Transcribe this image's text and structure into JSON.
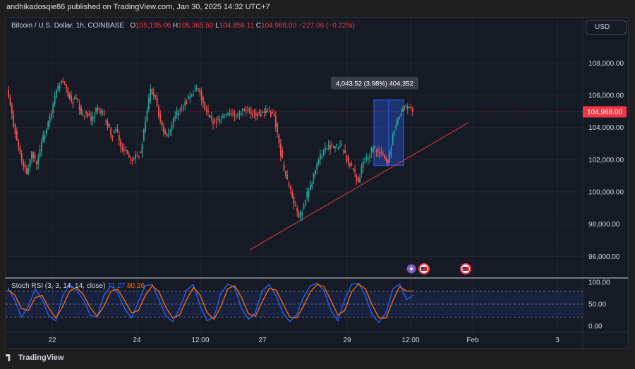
{
  "header": {
    "publisher_text": "andhikadosqie86 published on TradingView.com, Jan 30, 2025 14:32 UTC+7"
  },
  "legend": {
    "symbol": "Bitcoin / U.S. Dollar, 1h, COINBASE",
    "open_label": "O",
    "open_value": "105,195.06",
    "high_label": "H",
    "high_value": "105,365.50",
    "low_label": "L",
    "low_value": "104,858.11",
    "close_label": "C",
    "close_value": "104,968.00",
    "change_value": "−227.06 (−0.22%)"
  },
  "currency_button": "USD",
  "rsi_legend": {
    "name": "Stoch RSI (3, 3, 14, 14, close)",
    "k_value": "71.27",
    "d_value": "80.26"
  },
  "footer": {
    "brand": "TradingView"
  },
  "colors": {
    "up": "#26a69a",
    "down": "#ef5350",
    "price_tag": "#f23645",
    "trendline": "#c2343d",
    "k_line": "#2962ff",
    "d_line": "#ff6d00",
    "measure_box": "#2962ff"
  },
  "icons": [
    "lightning-event-icon",
    "us-flag-event-icon"
  ],
  "chart_data": [
    {
      "type": "line",
      "title": "Bitcoin / U.S. Dollar, 1h, COINBASE",
      "y_axis_ticks": [
        "108,000.00",
        "106,000.00",
        "104,000.00",
        "102,000.00",
        "100,000.00",
        "98,000.00",
        "96,000.00"
      ],
      "y_tick_values": [
        108000,
        106000,
        104000,
        102000,
        100000,
        98000,
        96000
      ],
      "x_axis_ticks": [
        "22",
        "24",
        "12:00",
        "27",
        "29",
        "12:00",
        "Feb",
        "3"
      ],
      "ylim": [
        94700,
        109500
      ],
      "last_price_label": "104,968.00",
      "last_price": 104968,
      "measure_label": "4,043.52 (3.98%) 404,352",
      "measure_top": 105700,
      "measure_bottom": 101650,
      "trendline": {
        "from": 96400,
        "to": 104300
      },
      "price_path": [
        106300,
        104800,
        103200,
        101900,
        101100,
        102500,
        101700,
        103100,
        103900,
        104900,
        106300,
        106900,
        106400,
        105600,
        105800,
        104800,
        104900,
        104400,
        105200,
        104900,
        104400,
        103500,
        103900,
        102800,
        102600,
        102000,
        102300,
        102400,
        104400,
        106400,
        105900,
        104400,
        103600,
        103800,
        104700,
        105100,
        105600,
        105900,
        106400,
        106200,
        105100,
        104600,
        104400,
        104500,
        104800,
        104900,
        104700,
        104800,
        105100,
        105000,
        104900,
        104800,
        104900,
        105000,
        104700,
        103000,
        101300,
        100400,
        99200,
        98400,
        99200,
        100100,
        101100,
        102000,
        102600,
        102900,
        102700,
        102800,
        102600,
        101800,
        101400,
        100600,
        101900,
        102100,
        102700,
        102500,
        102300,
        101800,
        103600,
        104500,
        105100,
        105300,
        104968
      ]
    },
    {
      "type": "line",
      "title": "Stoch RSI (3, 3, 14, 14, close)",
      "y_axis_ticks": [
        "100.00",
        "50.00",
        "0.00"
      ],
      "y_tick_values": [
        100,
        50,
        0
      ],
      "ylim": [
        -5,
        105
      ],
      "bands": [
        80,
        50,
        20
      ],
      "series": [
        {
          "name": "K",
          "values": [
            88,
            60,
            20,
            45,
            85,
            60,
            22,
            12,
            70,
            95,
            82,
            60,
            25,
            20,
            70,
            92,
            75,
            40,
            18,
            55,
            92,
            95,
            60,
            22,
            10,
            40,
            82,
            95,
            45,
            12,
            20,
            75,
            96,
            88,
            40,
            15,
            30,
            80,
            95,
            70,
            30,
            10,
            25,
            65,
            92,
            98,
            80,
            35,
            12,
            60,
            95,
            98,
            70,
            25,
            8,
            30,
            85,
            96,
            60,
            71
          ]
        },
        {
          "name": "D",
          "values": [
            82,
            72,
            40,
            35,
            65,
            70,
            40,
            18,
            45,
            80,
            88,
            72,
            42,
            22,
            45,
            80,
            84,
            58,
            30,
            35,
            70,
            92,
            78,
            42,
            18,
            25,
            60,
            88,
            70,
            30,
            15,
            45,
            85,
            92,
            65,
            28,
            22,
            55,
            86,
            82,
            52,
            20,
            18,
            45,
            78,
            95,
            90,
            58,
            25,
            35,
            78,
            96,
            85,
            48,
            18,
            18,
            58,
            90,
            80,
            80
          ]
        }
      ]
    }
  ]
}
